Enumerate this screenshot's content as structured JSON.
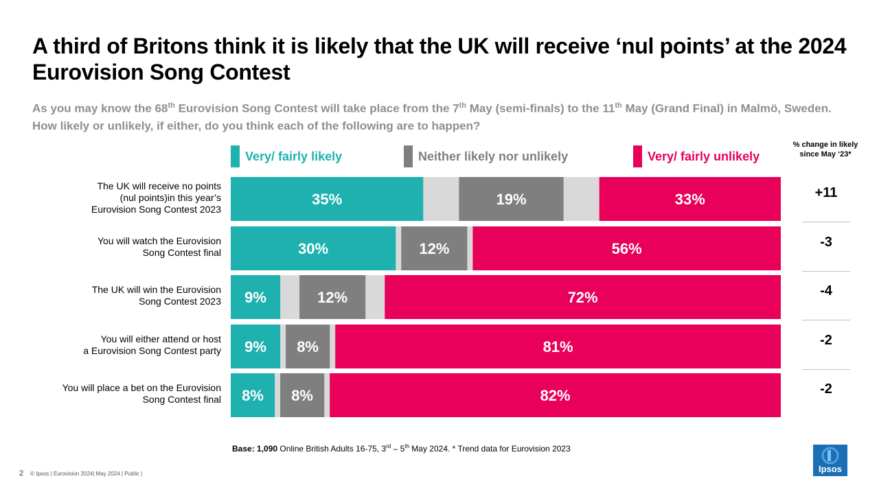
{
  "title": "A third of Britons think it is likely that the UK will receive ‘nul points’ at the 2024 Eurovision Song Contest",
  "subtitle": {
    "part1": "As you may know the 68",
    "sup1": "th",
    "part2": " Eurovision Song Contest will take place from the 7",
    "sup2": "th",
    "part3": " May (semi-finals) to the 11",
    "sup3": "th",
    "part4": " May (Grand Final) in Malmö, Sweden.  How likely or unlikely, if either, do you think each of the following are to happen?"
  },
  "legend": [
    {
      "label": "Very/ fairly likely",
      "color": "#1eb1b0"
    },
    {
      "label": "Neither likely nor unlikely",
      "color": "#7f7f7f"
    },
    {
      "label": "Very/ fairly unlikely",
      "color": "#e8005a"
    }
  ],
  "change_header": "% change in likely since May ‘23*",
  "base_note": {
    "bold": "Base: 1,090",
    "text": " Online British Adults 16-75, 3",
    "sup1": "rd",
    "text2": " – 5",
    "sup2": "th",
    "text3": "  May 2024. * Trend data for Eurovision 2023"
  },
  "footer": {
    "page": "2",
    "text": "© Ipsos | Eurovision  2024| May 2024 | Public |"
  },
  "logo_text": "Ipsos",
  "chart_data": {
    "type": "bar",
    "orientation": "horizontal-stacked",
    "categories": [
      "The UK will receive no points (nul points)in this year’s Eurovision Song Contest 2023",
      "You will watch the Eurovision Song Contest final",
      "The UK will win the Eurovision Song Contest 2023",
      "You will either attend or host a Eurovision Song Contest party",
      "You will place a bet on the Eurovision Song Contest final"
    ],
    "category_lines": [
      [
        "The UK will receive no points",
        "(nul points)in this year’s",
        "Eurovision Song Contest 2023"
      ],
      [
        "You will watch the Eurovision",
        "Song Contest final"
      ],
      [
        "The UK will win the Eurovision",
        "Song Contest 2023"
      ],
      [
        "You will either attend or host",
        "a Eurovision Song Contest party"
      ],
      [
        "You will place a bet on the Eurovision",
        "Song Contest final"
      ]
    ],
    "series": [
      {
        "name": "Very/ fairly likely",
        "color": "#1eb1b0",
        "values": [
          35,
          30,
          9,
          9,
          8
        ]
      },
      {
        "name": "Neither likely nor unlikely",
        "color": "#7f7f7f",
        "values": [
          19,
          12,
          12,
          8,
          8
        ]
      },
      {
        "name": "Very/ fairly unlikely",
        "color": "#e8005a",
        "values": [
          33,
          56,
          72,
          81,
          82
        ]
      }
    ],
    "data_labels": [
      [
        "35%",
        "19%",
        "33%"
      ],
      [
        "30%",
        "12%",
        "56%"
      ],
      [
        "9%",
        "12%",
        "72%"
      ],
      [
        "9%",
        "8%",
        "81%"
      ],
      [
        "8%",
        "8%",
        "82%"
      ]
    ],
    "remainder_color": "#d9d9d9",
    "change_since_may_23": [
      "+11",
      "-3",
      "-4",
      "-2",
      "-2"
    ],
    "xlim": [
      0,
      100
    ]
  }
}
